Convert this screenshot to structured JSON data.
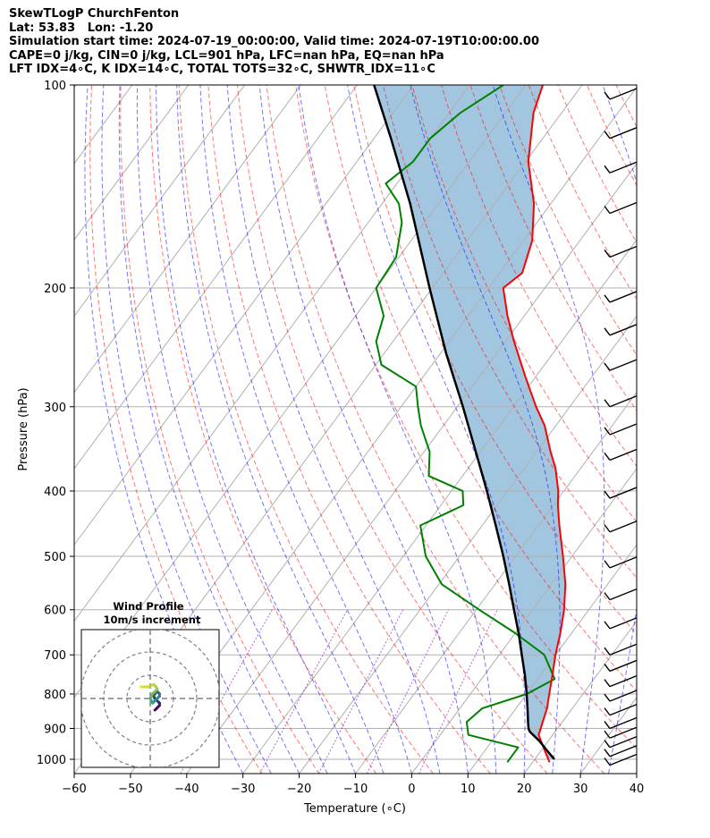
{
  "header": {
    "line1": "SkewTLogP ChurchFenton",
    "line2": "Lat: 53.83   Lon: -1.20",
    "line3": "Simulation start time: 2024-07-19_00:00:00, Valid time: 2024-07-19T10:00:00.00",
    "line4": "CAPE=0 j/kg, CIN=0 j/kg, LCL=901 hPa, LFC=nan hPa, EQ=nan hPa",
    "line5": "LFT IDX=4∘C, K IDX=14∘C, TOTAL TOTS=32∘C, SHWTR_IDX=11∘C"
  },
  "chart_data": {
    "type": "line",
    "xlabel": "Temperature (∘C)",
    "ylabel": "Pressure (hPa)",
    "xlim": [
      -60,
      40
    ],
    "ylim": [
      1050,
      100
    ],
    "log_y": true,
    "skew": true,
    "grid": true,
    "x_ticks": [
      -60,
      -50,
      -40,
      -30,
      -20,
      -10,
      0,
      10,
      20,
      30,
      40
    ],
    "y_ticks": [
      1000,
      900,
      800,
      700,
      600,
      500,
      400,
      300,
      200,
      100
    ],
    "colors": {
      "temperature": "#ff0000",
      "dewpoint": "#008000",
      "parcel": "#000000",
      "dry_adiabats": "#ff0000",
      "moist_adiabats": "#0000ff",
      "mixing_ratio": "#8000c0",
      "cape_fill": "#a3c6e0"
    },
    "series": [
      {
        "key": "temperature",
        "pressure": [
          1010,
          960,
          920,
          880,
          840,
          800,
          760,
          700,
          650,
          600,
          550,
          500,
          450,
          420,
          400,
          370,
          350,
          320,
          300,
          270,
          240,
          220,
          200,
          190,
          170,
          150,
          130,
          110,
          100
        ],
        "values": [
          23,
          20,
          17.5,
          16.5,
          15.5,
          14,
          12.5,
          10,
          8,
          5.6,
          2.5,
          -1.6,
          -6.3,
          -9.2,
          -11,
          -14.5,
          -17.5,
          -22,
          -26,
          -32,
          -38.5,
          -43,
          -47.4,
          -46,
          -48.5,
          -53,
          -59.5,
          -65,
          -67
        ]
      },
      {
        "key": "dewpoint",
        "pressure": [
          1010,
          960,
          920,
          880,
          840,
          800,
          760,
          700,
          650,
          600,
          550,
          500,
          450,
          420,
          400,
          380,
          350,
          320,
          300,
          280,
          260,
          240,
          220,
          200,
          180,
          160,
          150,
          140,
          130,
          120,
          110,
          100
        ],
        "values": [
          15.5,
          15.5,
          5,
          3,
          4,
          10,
          13,
          8,
          0,
          -9.5,
          -19.5,
          -26,
          -31,
          -26,
          -28,
          -36,
          -39,
          -44,
          -47,
          -50,
          -59,
          -63,
          -65,
          -70,
          -70.5,
          -74,
          -77,
          -82,
          -80,
          -80,
          -78,
          -74
        ]
      },
      {
        "key": "parcel",
        "pressure": [
          1000,
          970,
          940,
          910,
          901,
          880,
          850,
          800,
          750,
          700,
          650,
          600,
          550,
          500,
          450,
          400,
          350,
          300,
          250,
          200,
          150,
          120,
          100
        ],
        "values": [
          23.5,
          21,
          18.5,
          15.5,
          14.9,
          13.9,
          12.5,
          10,
          7.2,
          4,
          0.6,
          -3.3,
          -7.5,
          -12.2,
          -17.6,
          -23.7,
          -30.8,
          -39,
          -49,
          -60.5,
          -75,
          -87,
          -97
        ]
      }
    ],
    "wind_barbs": {
      "pressure": [
        1020,
        990,
        960,
        930,
        900,
        860,
        820,
        780,
        740,
        700,
        640,
        580,
        520,
        460,
        410,
        360,
        330,
        300,
        265,
        235,
        210,
        180,
        155,
        135,
        120,
        105
      ]
    },
    "hodograph": {
      "title": "Wind Profile",
      "subtitle": "10m/s increment",
      "rings_ms": [
        10,
        20,
        30
      ],
      "u": [
        2,
        3,
        4,
        4,
        3,
        2,
        1.5,
        2,
        3,
        4,
        4,
        3,
        2,
        1,
        0.5,
        0,
        0.5,
        1,
        2,
        3,
        2.5,
        1.5,
        -1,
        -3,
        -4,
        -4
      ],
      "v": [
        -5,
        -4,
        -3,
        -2,
        -1,
        0,
        1,
        2,
        3,
        2,
        1,
        0,
        -1,
        -2,
        -1,
        0,
        1,
        2,
        3,
        4,
        5,
        6,
        5,
        5,
        5,
        5
      ]
    }
  }
}
